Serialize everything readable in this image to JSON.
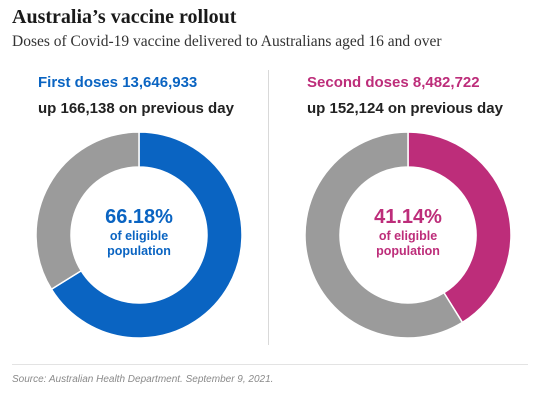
{
  "title": "Australia’s vaccine rollout",
  "subtitle": "Doses of Covid-19 vaccine delivered to Australians aged 16 and over",
  "source": "Source: Australian Health Department. September 9, 2021.",
  "colors": {
    "first": "#0a64c2",
    "second": "#bd2d7a",
    "remainder": "#9b9b9b"
  },
  "panels": [
    {
      "heading": "First doses 13,646,933",
      "change": "up 166,138 on previous day",
      "percent_label": "66.18%",
      "center_line1": "of eligible",
      "center_line2": "population"
    },
    {
      "heading": "Second doses 8,482,722",
      "change": "up 152,124 on previous day",
      "percent_label": "41.14%",
      "center_line1": "of eligible",
      "center_line2": "population"
    }
  ],
  "chart_data": [
    {
      "type": "pie",
      "variant": "donut",
      "title": "First doses 13,646,933",
      "slices": [
        {
          "value": 66.18,
          "color": "#0a64c2"
        },
        {
          "value": 33.82,
          "color": "#9b9b9b"
        }
      ]
    },
    {
      "type": "pie",
      "variant": "donut",
      "title": "Second doses 8,482,722",
      "slices": [
        {
          "value": 41.14,
          "color": "#bd2d7a"
        },
        {
          "value": 58.86,
          "color": "#9b9b9b"
        }
      ]
    }
  ]
}
